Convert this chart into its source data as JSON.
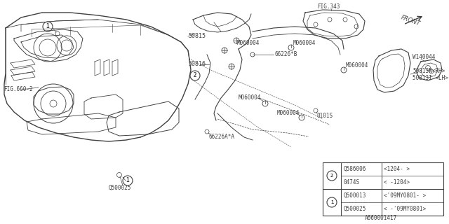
{
  "bg_color": "#ffffff",
  "line_color": "#404040",
  "fig_number": "A660001417",
  "table": {
    "rows": [
      {
        "symbol": "1",
        "part": "Q500025",
        "note": "< -'09MY0801>"
      },
      {
        "symbol": "1",
        "part": "Q500013",
        "note": "<'09MY0801- >"
      },
      {
        "symbol": "2",
        "part": "0474S",
        "note": "< -1204>"
      },
      {
        "symbol": "2",
        "part": "Q586006",
        "note": "<1204- >"
      }
    ]
  }
}
